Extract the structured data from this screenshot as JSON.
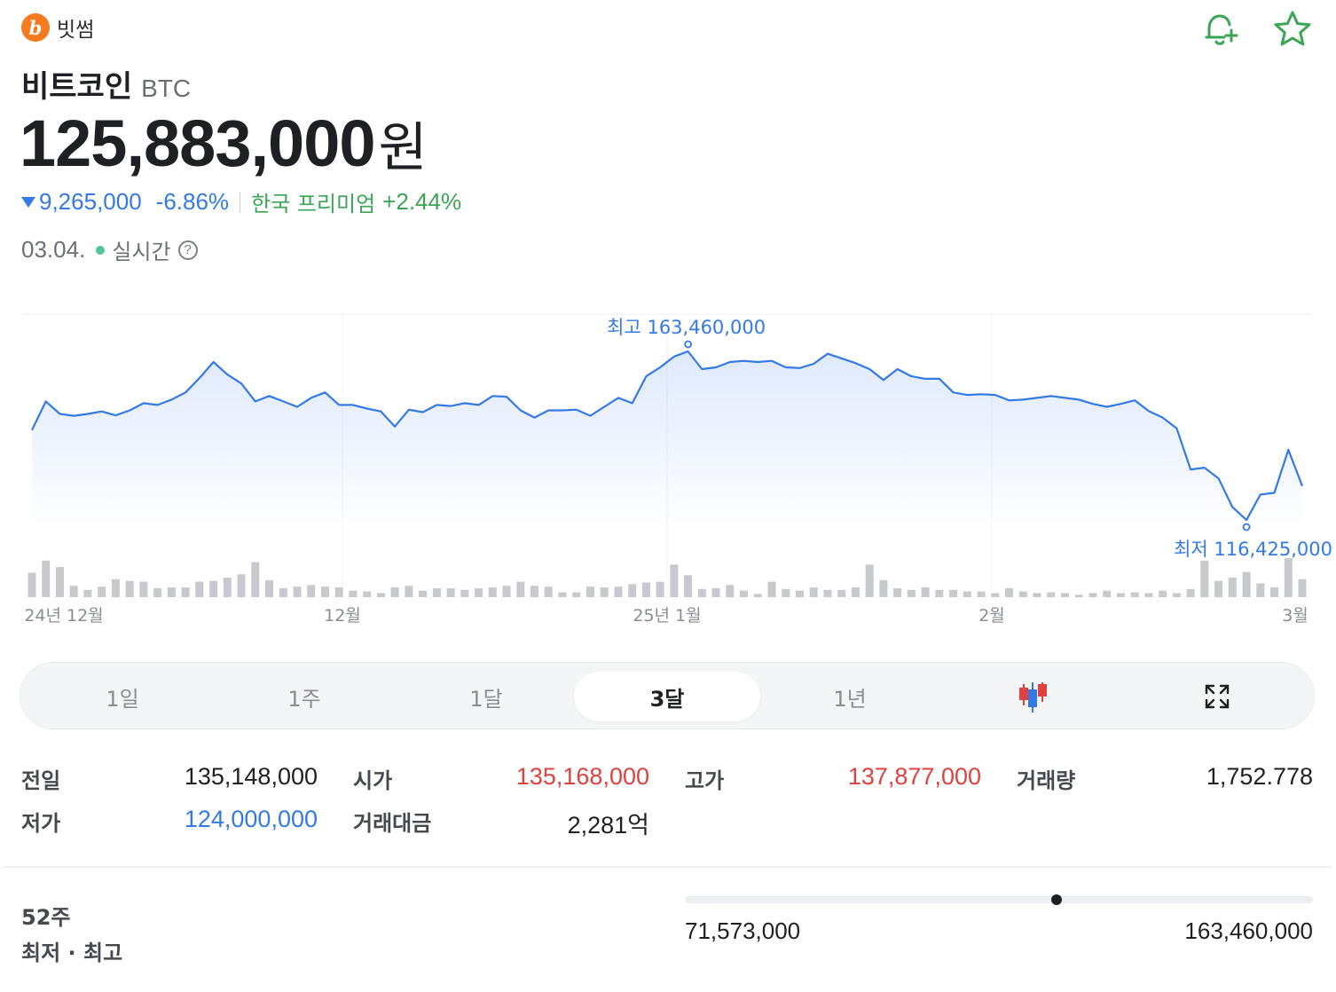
{
  "header": {
    "exchange_name": "빗썸",
    "logo_letter": "b",
    "coin_name": "비트코인",
    "coin_symbol": "BTC",
    "price": "125,883,000",
    "price_unit": "원",
    "change_abs": "9,265,000",
    "change_pct": "-6.86%",
    "premium_label": "한국 프리미엄",
    "premium_value": "+2.44%",
    "date": "03.04.",
    "live_label": "실시간",
    "help_glyph": "?"
  },
  "icons": [
    "bitcoin-logo-icon",
    "bell-plus-icon",
    "star-icon",
    "down-triangle-icon",
    "help-icon",
    "candlestick-icon",
    "expand-icon"
  ],
  "colors": {
    "up": "#e0413f",
    "down": "#3479e8",
    "premium": "#3aa655",
    "line": "#3479e8",
    "volume": "#c8c9cc",
    "bell": "#3aa655",
    "star": "#3aa655"
  },
  "chart_data": {
    "type": "line",
    "x_labels": [
      "24년 12월",
      "12월",
      "25년 1월",
      "2월",
      "3월"
    ],
    "high_annotation": "최고 163,460,000",
    "low_annotation": "최저 116,425,000",
    "high": 163460000,
    "low": 116425000,
    "values": [
      141.5,
      149.5,
      146.0,
      145.5,
      146.0,
      146.7,
      145.6,
      147.0,
      149.0,
      148.5,
      150.0,
      152.0,
      156.0,
      160.5,
      157.0,
      154.5,
      149.5,
      151.0,
      149.5,
      148.0,
      150.5,
      152.0,
      148.5,
      148.5,
      147.5,
      146.7,
      142.5,
      147.2,
      146.5,
      148.5,
      148.2,
      149.0,
      148.5,
      151.0,
      150.8,
      147.0,
      145.0,
      147.0,
      147.0,
      147.2,
      145.5,
      148.0,
      150.5,
      149.0,
      156.5,
      159.0,
      162.0,
      163.46,
      158.5,
      159.0,
      160.5,
      160.8,
      160.5,
      160.8,
      159.0,
      158.8,
      160.0,
      162.8,
      161.5,
      160.2,
      158.5,
      155.5,
      158.5,
      156.5,
      155.8,
      155.8,
      152.0,
      151.3,
      151.5,
      151.3,
      149.8,
      150.0,
      150.5,
      151.0,
      150.5,
      150.0,
      148.8,
      148.0,
      148.8,
      149.8,
      146.8,
      145.0,
      142.0,
      130.5,
      131.0,
      128.0,
      120.0,
      116.425,
      123.5,
      124.0,
      136.0,
      125.883
    ],
    "volume": [
      30,
      45,
      37,
      14,
      9,
      13,
      22,
      20,
      19,
      11,
      12,
      12,
      19,
      20,
      24,
      28,
      43,
      21,
      11,
      13,
      15,
      13,
      12,
      8,
      7,
      5,
      12,
      14,
      8,
      11,
      11,
      9,
      11,
      12,
      14,
      19,
      14,
      13,
      6,
      6,
      13,
      12,
      13,
      16,
      18,
      19,
      40,
      27,
      10,
      11,
      15,
      8,
      4,
      19,
      10,
      8,
      12,
      9,
      9,
      12,
      40,
      21,
      11,
      9,
      12,
      9,
      9,
      7,
      7,
      5,
      11,
      7,
      5,
      6,
      5,
      3,
      5,
      8,
      5,
      6,
      5,
      8,
      5,
      10,
      45,
      20,
      24,
      31,
      17,
      12,
      48,
      22
    ],
    "ylim": [
      116.425,
      163.46
    ]
  },
  "tabs": [
    "1일",
    "1주",
    "1달",
    "3달",
    "1년"
  ],
  "active_tab": "3달",
  "stats": {
    "prev_close_label": "전일",
    "prev_close": "135,148,000",
    "open_label": "시가",
    "open": "135,168,000",
    "high_label": "고가",
    "high": "137,877,000",
    "volume_label": "거래량",
    "volume": "1,752.778",
    "low_label": "저가",
    "low": "124,000,000",
    "turnover_label": "거래대금",
    "turnover": "2,281억"
  },
  "week52": {
    "label_line1": "52주",
    "label_line2": "최저 · 최고",
    "min": "71,573,000",
    "max": "163,460,000",
    "position_pct": 0.592
  }
}
